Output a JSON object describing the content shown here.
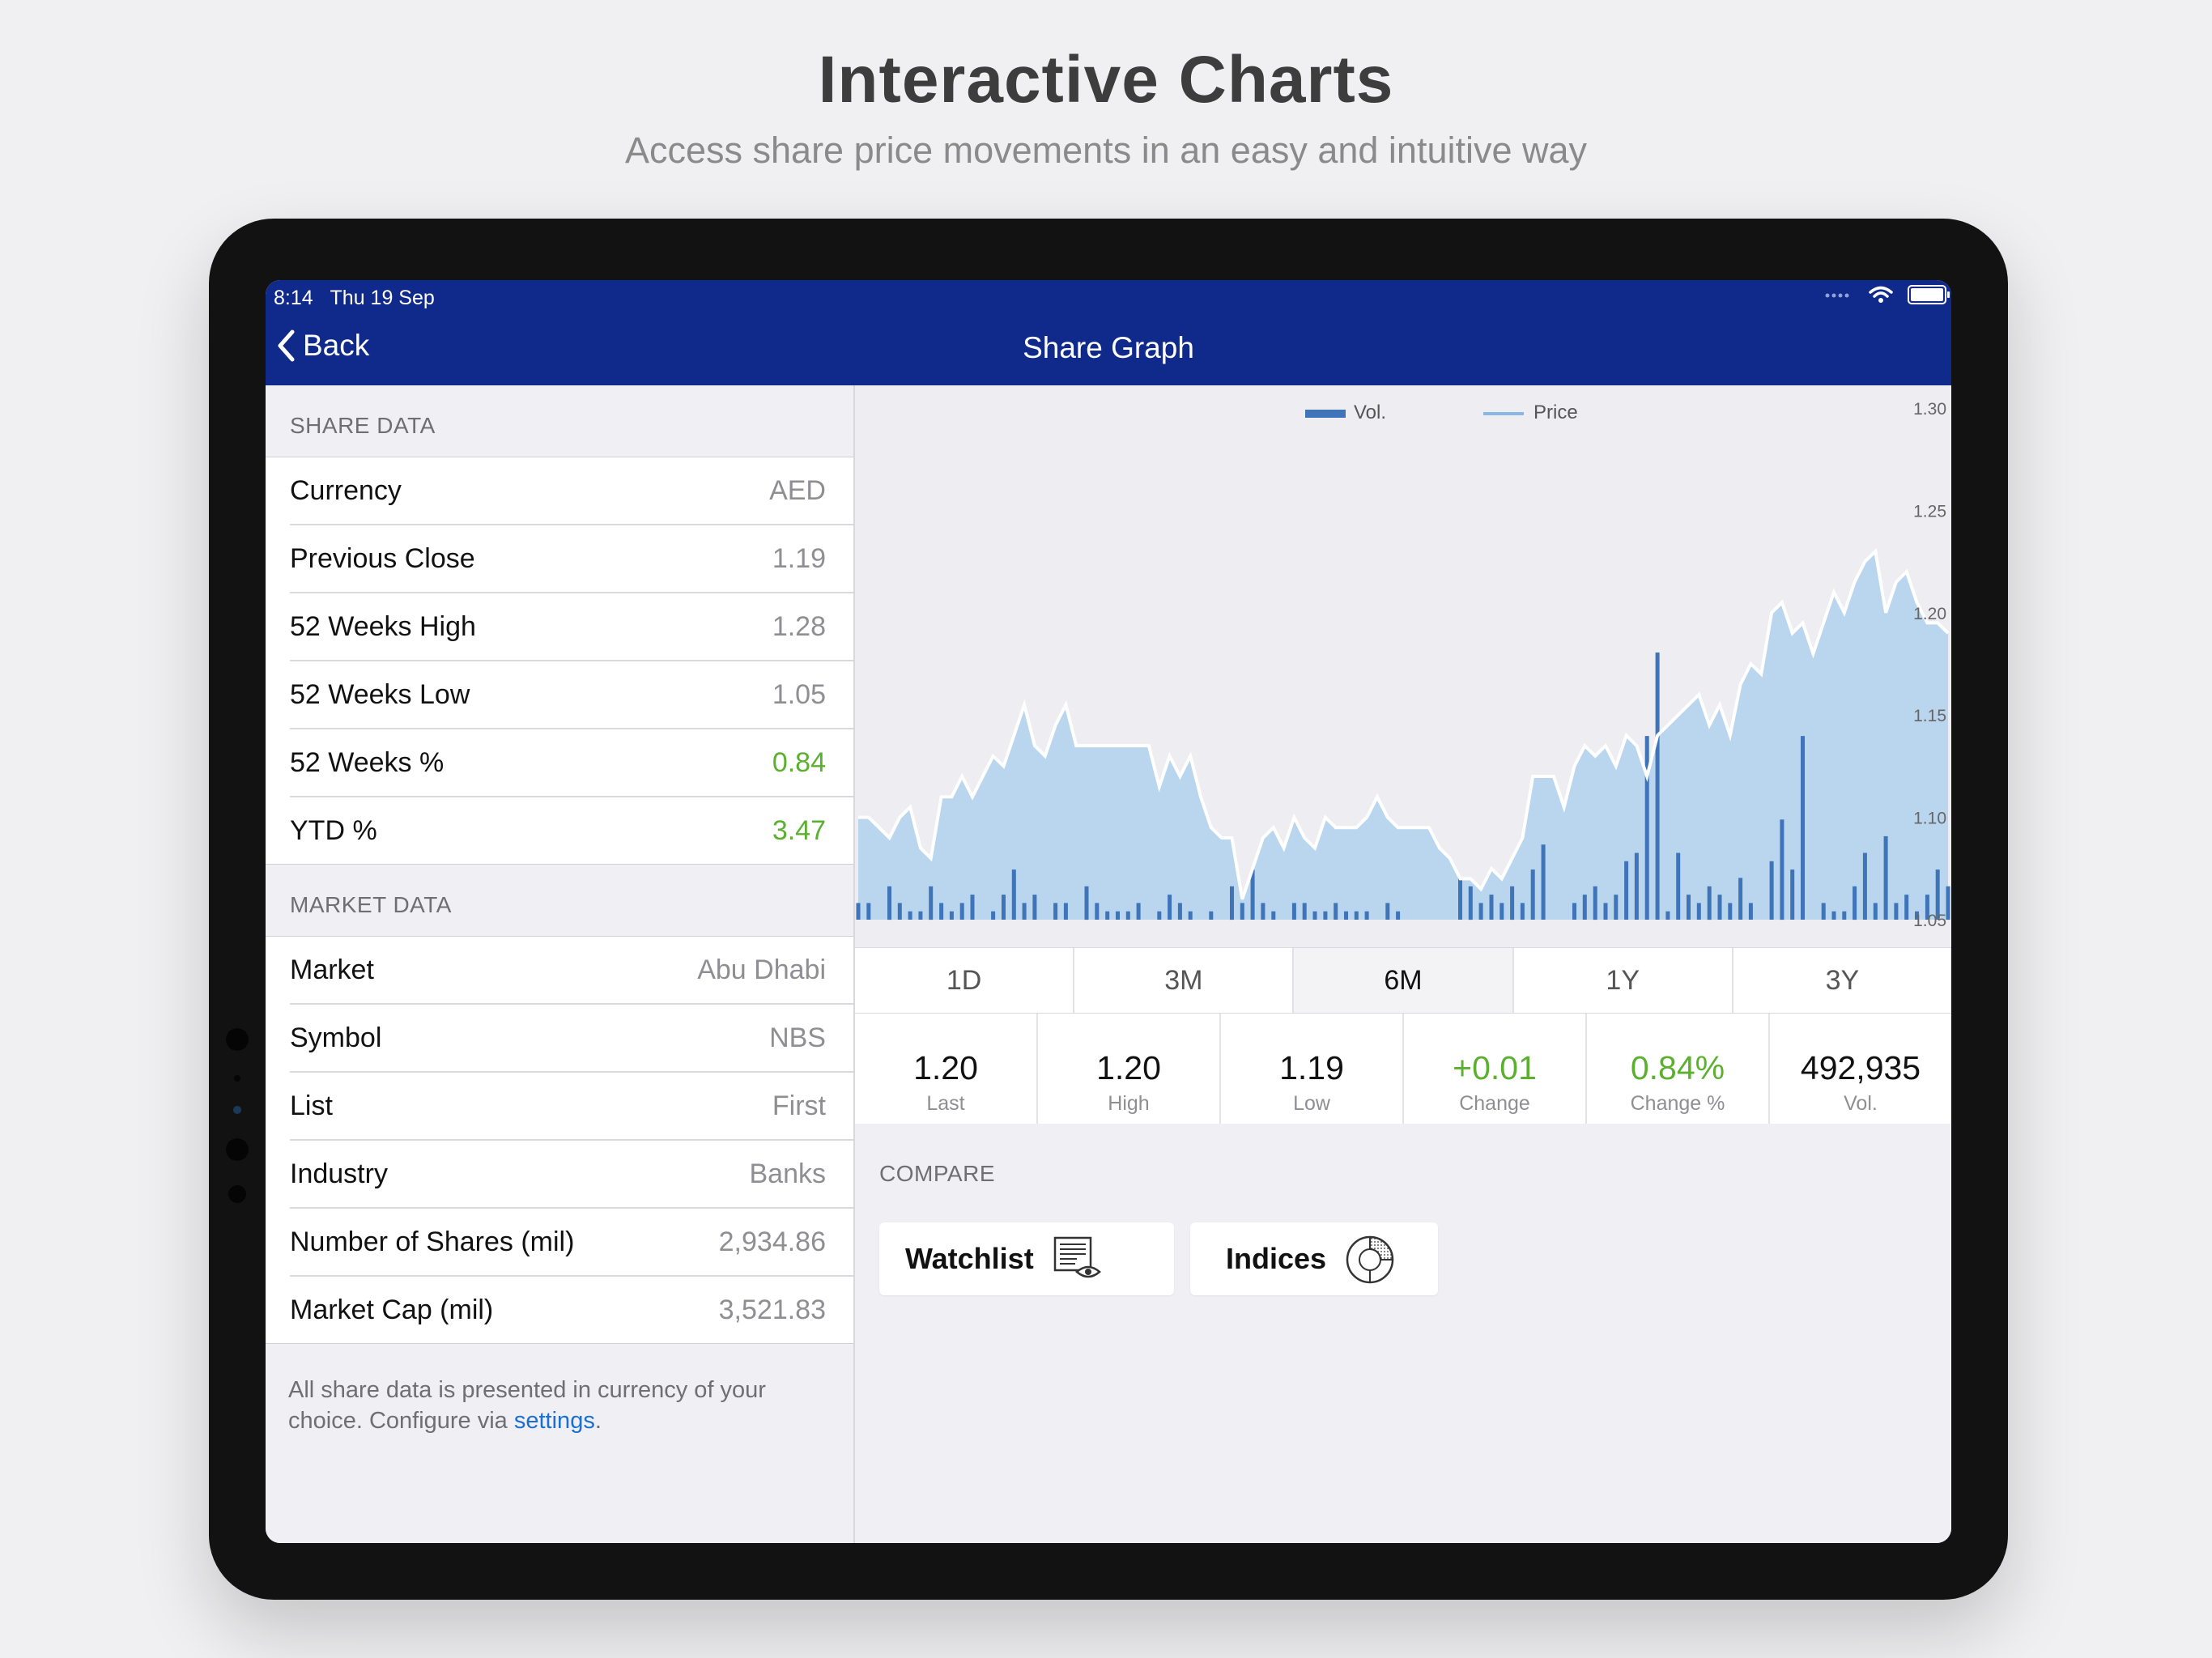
{
  "hero": {
    "title": "Interactive Charts",
    "subtitle": "Access share price movements in an easy and intuitive way"
  },
  "status_bar": {
    "time": "8:14",
    "date": "Thu 19 Sep"
  },
  "nav": {
    "back_label": "Back",
    "title": "Share Graph"
  },
  "share_data": {
    "header": "SHARE DATA",
    "rows": [
      {
        "label": "Currency",
        "value": "AED"
      },
      {
        "label": "Previous Close",
        "value": "1.19"
      },
      {
        "label": "52 Weeks High",
        "value": "1.28"
      },
      {
        "label": "52 Weeks Low",
        "value": "1.05"
      },
      {
        "label": "52 Weeks %",
        "value": "0.84"
      },
      {
        "label": "YTD %",
        "value": "3.47"
      }
    ]
  },
  "market_data": {
    "header": "MARKET DATA",
    "rows": [
      {
        "label": "Market",
        "value": "Abu Dhabi"
      },
      {
        "label": "Symbol",
        "value": "NBS"
      },
      {
        "label": "List",
        "value": "First"
      },
      {
        "label": "Industry",
        "value": "Banks"
      },
      {
        "label": "Number of Shares (mil)",
        "value": "2,934.86"
      },
      {
        "label": "Market Cap (mil)",
        "value": "3,521.83"
      }
    ]
  },
  "footnote": {
    "text": "All share data is presented in currency of your choice. Configure via ",
    "link": "settings",
    "end": "."
  },
  "periods": [
    "1D",
    "3M",
    "6M",
    "1Y",
    "3Y"
  ],
  "active_period": "6M",
  "stats": [
    {
      "value": "1.20",
      "label": "Last"
    },
    {
      "value": "1.20",
      "label": "High"
    },
    {
      "value": "1.19",
      "label": "Low"
    },
    {
      "value": "+0.01",
      "label": "Change"
    },
    {
      "value": "0.84%",
      "label": "Change %"
    },
    {
      "value": "492,935",
      "label": "Vol."
    }
  ],
  "compare": {
    "header": "COMPARE",
    "watchlist_label": "Watchlist",
    "indices_label": "Indices"
  },
  "colors": {
    "nav_bg": "#0f2a8a",
    "positive": "#5cb030",
    "area_fill": "#b9d6ee",
    "volume_bar": "#3f74b8",
    "link": "#1a6fd1"
  },
  "chart_data": {
    "type": "area",
    "series": [
      {
        "name": "Vol.",
        "type": "bar"
      },
      {
        "name": "Price",
        "type": "area"
      }
    ],
    "y_ticks": [
      "1.30",
      "1.25",
      "1.20",
      "1.15",
      "1.10",
      "1.05"
    ],
    "ylim": [
      1.05,
      1.3
    ],
    "price": [
      1.1,
      1.1,
      1.095,
      1.09,
      1.1,
      1.105,
      1.085,
      1.08,
      1.11,
      1.11,
      1.12,
      1.11,
      1.12,
      1.13,
      1.125,
      1.14,
      1.155,
      1.135,
      1.13,
      1.145,
      1.155,
      1.135,
      1.135,
      1.135,
      1.135,
      1.135,
      1.135,
      1.135,
      1.135,
      1.115,
      1.13,
      1.12,
      1.13,
      1.11,
      1.095,
      1.09,
      1.09,
      1.06,
      1.075,
      1.09,
      1.095,
      1.085,
      1.1,
      1.09,
      1.085,
      1.1,
      1.095,
      1.095,
      1.095,
      1.1,
      1.11,
      1.1,
      1.095,
      1.095,
      1.095,
      1.095,
      1.085,
      1.08,
      1.07,
      1.07,
      1.065,
      1.075,
      1.07,
      1.08,
      1.09,
      1.12,
      1.12,
      1.12,
      1.105,
      1.125,
      1.135,
      1.13,
      1.135,
      1.125,
      1.14,
      1.135,
      1.12,
      1.14,
      1.145,
      1.15,
      1.155,
      1.16,
      1.145,
      1.155,
      1.14,
      1.165,
      1.175,
      1.17,
      1.2,
      1.205,
      1.19,
      1.195,
      1.18,
      1.195,
      1.21,
      1.2,
      1.215,
      1.225,
      1.23,
      1.2,
      1.215,
      1.22,
      1.205,
      1.195,
      1.195,
      1.19
    ],
    "volume": [
      2,
      2,
      0,
      4,
      2,
      1,
      1,
      4,
      2,
      1,
      2,
      3,
      0,
      1,
      3,
      6,
      2,
      3,
      0,
      2,
      2,
      0,
      4,
      2,
      1,
      1,
      1,
      2,
      0,
      1,
      3,
      2,
      1,
      0,
      1,
      0,
      4,
      2,
      6,
      2,
      1,
      0,
      2,
      2,
      1,
      1,
      2,
      1,
      1,
      1,
      0,
      2,
      1,
      0,
      0,
      0,
      0,
      0,
      5,
      4,
      2,
      3,
      2,
      4,
      2,
      6,
      9,
      0,
      0,
      2,
      3,
      4,
      2,
      3,
      7,
      8,
      22,
      32,
      1,
      8,
      3,
      2,
      4,
      3,
      2,
      5,
      2,
      0,
      7,
      12,
      6,
      22,
      0,
      2,
      1,
      1,
      4,
      8,
      2,
      10,
      2,
      3,
      1,
      3,
      6,
      4
    ]
  }
}
